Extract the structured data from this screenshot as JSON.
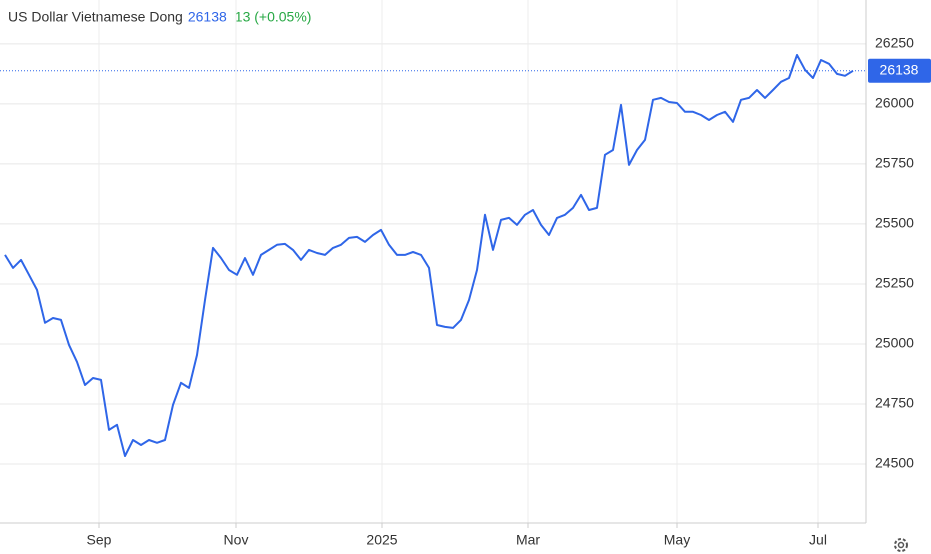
{
  "chart_data": {
    "type": "line",
    "title": "US Dollar Vietnamese Dong",
    "price": "26138",
    "change": "13 (+0.05%)",
    "last_value": 26138,
    "color": "#2f66e8",
    "grid": true,
    "ylim": [
      24254,
      26433
    ],
    "yticks": [
      24500,
      24750,
      25000,
      25250,
      25500,
      25750,
      26000,
      26250
    ],
    "xlim": [
      -0.625,
      107.625
    ],
    "xticks": [
      {
        "value": 11.75,
        "label": "Sep"
      },
      {
        "value": 28.875,
        "label": "Nov"
      },
      {
        "value": 47.125,
        "label": "2025"
      },
      {
        "value": 65.375,
        "label": "Mar"
      },
      {
        "value": 84,
        "label": "May"
      },
      {
        "value": 101.625,
        "label": "Jul"
      }
    ],
    "values": [
      25371,
      25317,
      25350,
      25288,
      25225,
      25088,
      25108,
      25100,
      24996,
      24925,
      24829,
      24858,
      24850,
      24642,
      24663,
      24533,
      24600,
      24579,
      24600,
      24588,
      24600,
      24746,
      24838,
      24817,
      24954,
      25183,
      25400,
      25358,
      25308,
      25288,
      25358,
      25288,
      25371,
      25392,
      25413,
      25417,
      25392,
      25350,
      25392,
      25379,
      25371,
      25400,
      25413,
      25442,
      25446,
      25425,
      25454,
      25475,
      25413,
      25371,
      25371,
      25383,
      25371,
      25317,
      25079,
      25071,
      25067,
      25100,
      25183,
      25308,
      25538,
      25392,
      25517,
      25525,
      25496,
      25538,
      25558,
      25496,
      25454,
      25525,
      25538,
      25567,
      25621,
      25558,
      25567,
      25788,
      25808,
      25996,
      25746,
      25808,
      25850,
      26017,
      26025,
      26008,
      26004,
      25967,
      25967,
      25954,
      25933,
      25954,
      25967,
      25925,
      26017,
      26025,
      26058,
      26025,
      26058,
      26092,
      26108,
      26204,
      26142,
      26108,
      26183,
      26167,
      26125,
      26117,
      26138
    ]
  }
}
